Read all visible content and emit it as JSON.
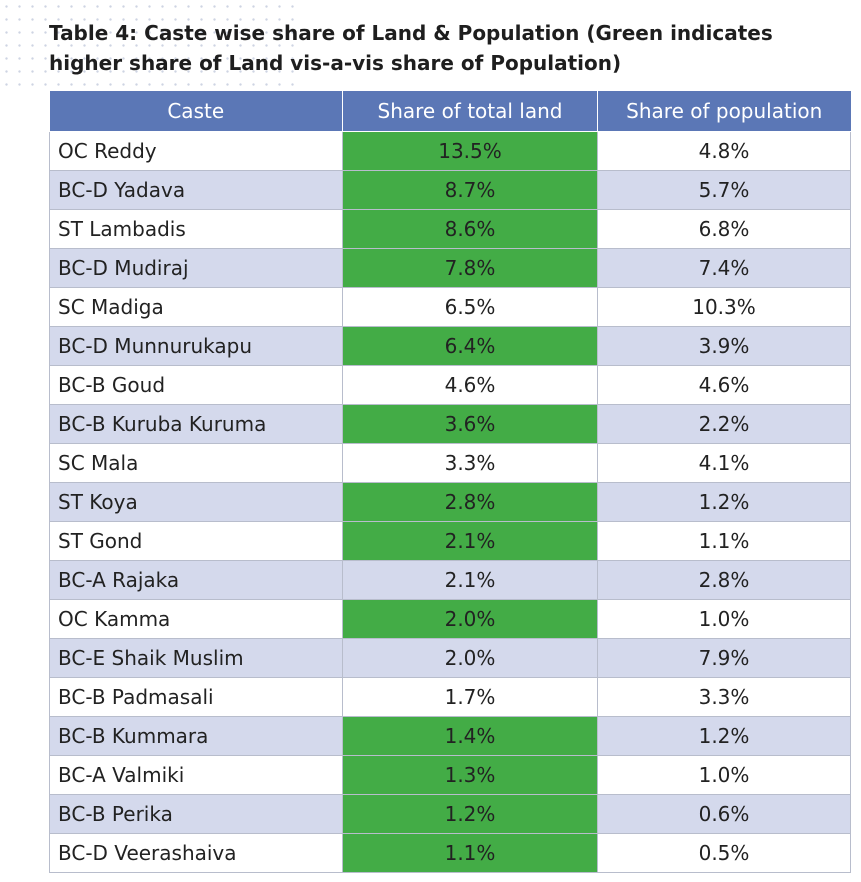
{
  "title": "Table 4: Caste wise share of Land & Population (Green indicates higher share of Land vis-a-vis share of Population)",
  "colors": {
    "header": "#5b77b6",
    "alt_row": "#d4d9ec",
    "highlight": "#43ac46"
  },
  "table": {
    "headers": [
      "Caste",
      "Share of total land",
      "Share of population"
    ],
    "rows": [
      {
        "caste": "OC Reddy",
        "land": "13.5%",
        "population": "4.8%",
        "highlight": true
      },
      {
        "caste": "BC-D Yadava",
        "land": "8.7%",
        "population": "5.7%",
        "highlight": true
      },
      {
        "caste": "ST Lambadis",
        "land": "8.6%",
        "population": "6.8%",
        "highlight": true
      },
      {
        "caste": "BC-D Mudiraj",
        "land": "7.8%",
        "population": "7.4%",
        "highlight": true
      },
      {
        "caste": "SC Madiga",
        "land": "6.5%",
        "population": "10.3%",
        "highlight": false
      },
      {
        "caste": "BC-D Munnurukapu",
        "land": "6.4%",
        "population": "3.9%",
        "highlight": true
      },
      {
        "caste": "BC-B Goud",
        "land": "4.6%",
        "population": "4.6%",
        "highlight": false
      },
      {
        "caste": "BC-B Kuruba Kuruma",
        "land": "3.6%",
        "population": "2.2%",
        "highlight": true
      },
      {
        "caste": "SC Mala",
        "land": "3.3%",
        "population": "4.1%",
        "highlight": false
      },
      {
        "caste": "ST Koya",
        "land": "2.8%",
        "population": "1.2%",
        "highlight": true
      },
      {
        "caste": "ST Gond",
        "land": "2.1%",
        "population": "1.1%",
        "highlight": true
      },
      {
        "caste": "BC-A Rajaka",
        "land": "2.1%",
        "population": "2.8%",
        "highlight": false
      },
      {
        "caste": "OC Kamma",
        "land": "2.0%",
        "population": "1.0%",
        "highlight": true
      },
      {
        "caste": "BC-E Shaik Muslim",
        "land": "2.0%",
        "population": "7.9%",
        "highlight": false
      },
      {
        "caste": "BC-B Padmasali",
        "land": "1.7%",
        "population": "3.3%",
        "highlight": false
      },
      {
        "caste": "BC-B Kummara",
        "land": "1.4%",
        "population": "1.2%",
        "highlight": true
      },
      {
        "caste": "BC-A Valmiki",
        "land": "1.3%",
        "population": "1.0%",
        "highlight": true
      },
      {
        "caste": "BC-B Perika",
        "land": "1.2%",
        "population": "0.6%",
        "highlight": true
      },
      {
        "caste": "BC-D Veerashaiva",
        "land": "1.1%",
        "population": "0.5%",
        "highlight": true
      }
    ]
  }
}
